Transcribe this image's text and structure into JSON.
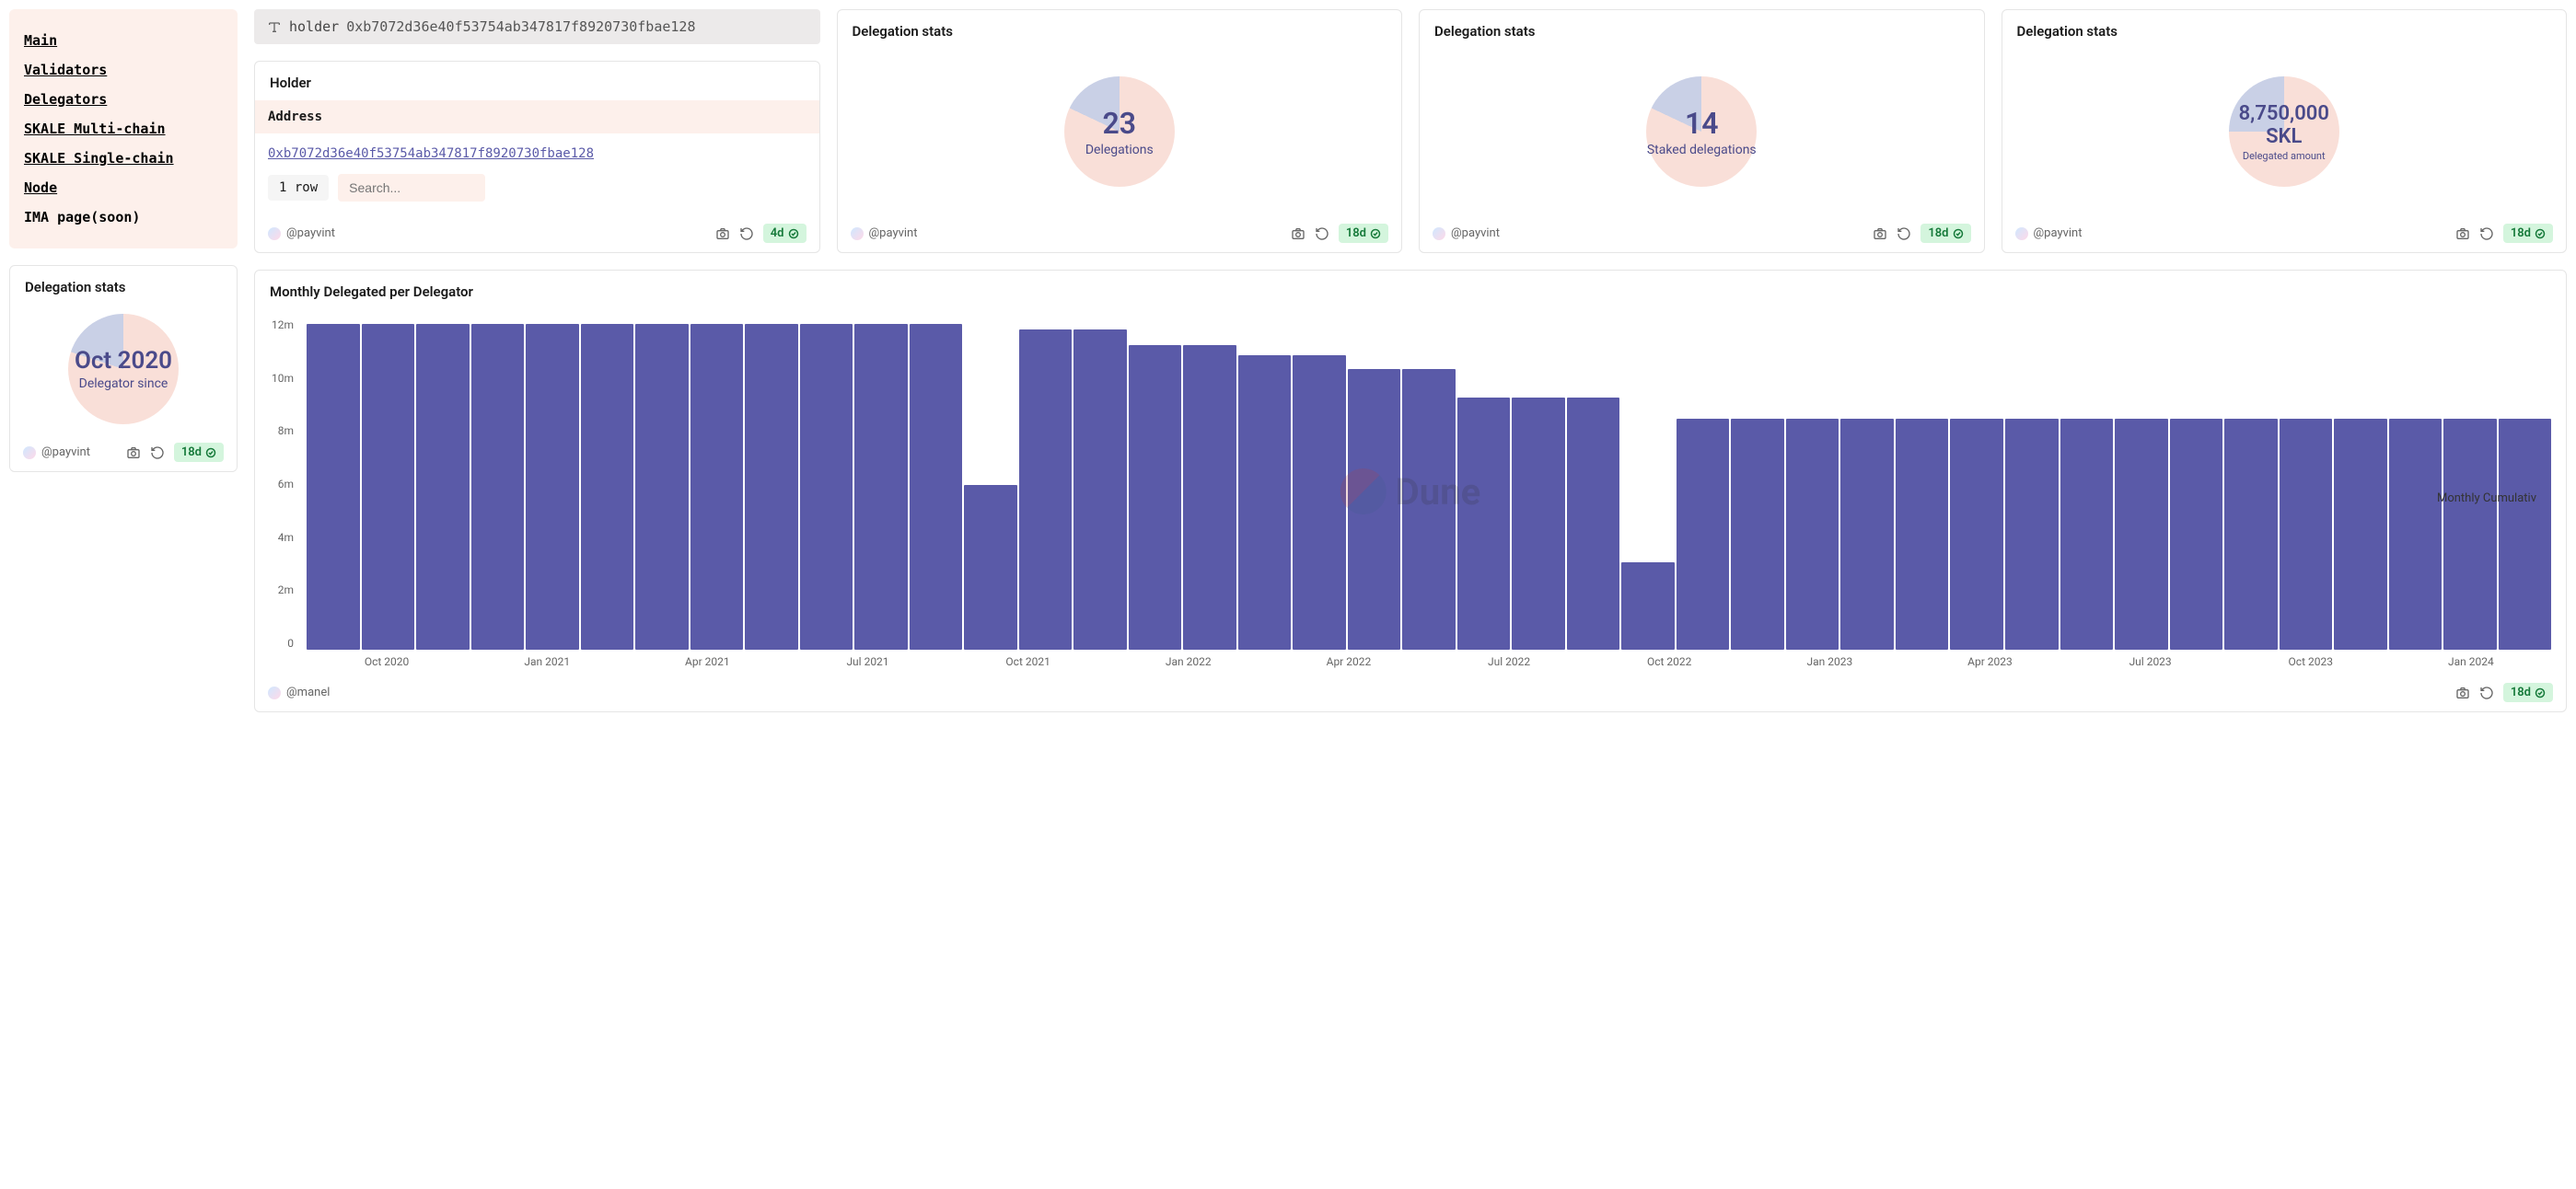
{
  "sidebar": {
    "items": [
      {
        "label": "Main",
        "underline": true
      },
      {
        "label": "Validators",
        "underline": true
      },
      {
        "label": "Delegators",
        "underline": true
      },
      {
        "label": "SKALE Multi-chain",
        "underline": true
      },
      {
        "label": "SKALE Single-chain",
        "underline": true
      },
      {
        "label": "Node",
        "underline": true
      },
      {
        "label": "IMA page(soon)",
        "underline": false
      }
    ]
  },
  "filter": {
    "label": "holder",
    "value": "0xb7072d36e40f53754ab347817f8920730fbae128"
  },
  "holder": {
    "title": "Holder",
    "column_header": "Address",
    "address": "0xb7072d36e40f53754ab347817f8920730fbae128",
    "row_count": "1 row",
    "search_placeholder": "Search..."
  },
  "footer_common": {
    "author": "@payvint",
    "author2": "@manel"
  },
  "ages": {
    "holder": "4d",
    "stat": "18d"
  },
  "stat_sidebar": {
    "title": "Delegation stats",
    "value": "Oct 2020",
    "label": "Delegator since",
    "pie": {
      "pct": 80,
      "primary": "#f9dfd8",
      "secondary": "#c9d0e6"
    }
  },
  "stat1": {
    "title": "Delegation stats",
    "value": "23",
    "label": "Delegations",
    "pie": {
      "pct": 82,
      "primary": "#f9dfd8",
      "secondary": "#c9d0e6"
    }
  },
  "stat2": {
    "title": "Delegation stats",
    "value": "14",
    "label": "Staked delegations",
    "pie": {
      "pct": 82,
      "primary": "#f9dfd8",
      "secondary": "#c9d0e6"
    }
  },
  "stat3": {
    "title": "Delegation stats",
    "value": "8,750,000 SKL",
    "label": "Delegated amount",
    "pie": {
      "pct": 75,
      "primary": "#f9dfd8",
      "secondary": "#c9d0e6"
    }
  },
  "chart": {
    "title": "Monthly Delegated per Delegator",
    "type": "bar",
    "bar_color": "#5a5aa8",
    "background_color": "#ffffff",
    "ylim": [
      0,
      12500000
    ],
    "y_ticks": [
      "12m",
      "10m",
      "8m",
      "6m",
      "4m",
      "2m",
      "0"
    ],
    "x_labels": [
      "Oct 2020",
      "Jan 2021",
      "Apr 2021",
      "Jul 2021",
      "Oct 2021",
      "Jan 2022",
      "Apr 2022",
      "Jul 2022",
      "Oct 2022",
      "Jan 2023",
      "Apr 2023",
      "Jul 2023",
      "Oct 2023",
      "Jan 2024"
    ],
    "values": [
      12300000,
      12300000,
      12300000,
      12300000,
      12300000,
      12300000,
      12300000,
      12300000,
      12300000,
      12300000,
      12300000,
      12300000,
      6200000,
      12100000,
      12100000,
      11500000,
      11500000,
      11100000,
      11100000,
      10600000,
      10600000,
      9500000,
      9500000,
      9500000,
      3300000,
      8700000,
      8700000,
      8700000,
      8700000,
      8700000,
      8700000,
      8700000,
      8700000,
      8700000,
      8700000,
      8700000,
      8700000,
      8700000,
      8700000,
      8700000,
      8700000
    ],
    "legend": "Monthly Cumulativ",
    "watermark": "Dune"
  },
  "colors": {
    "sidebar_bg": "#fdf0eb",
    "accent": "#5a5aa8",
    "badge_bg": "#d4f5dd",
    "badge_fg": "#167a3a"
  }
}
